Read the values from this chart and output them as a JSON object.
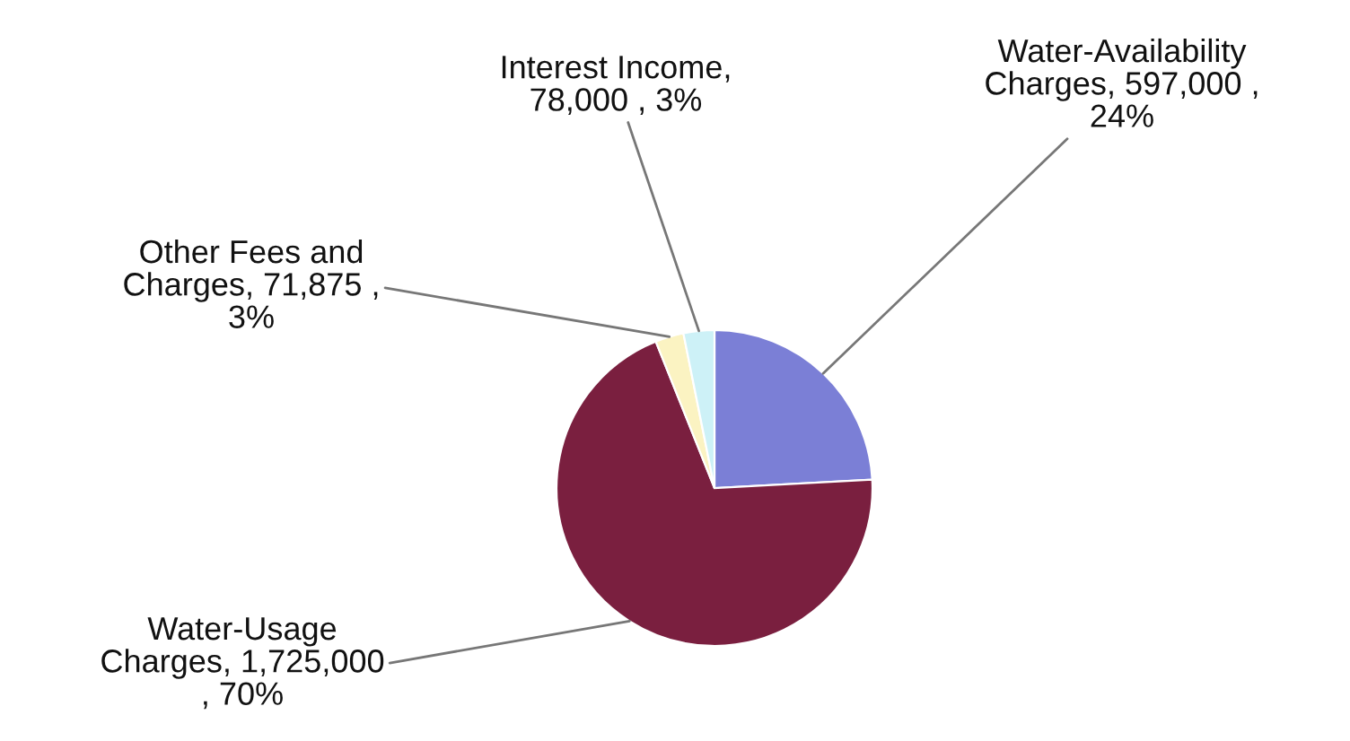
{
  "chart_data": {
    "type": "pie",
    "categories": [
      "Water-Availability\nCharges",
      "Water-Usage\nCharges",
      "Other Fees and\nCharges",
      "Interest Income"
    ],
    "values": [
      597000,
      1725000,
      71875,
      78000
    ],
    "value_labels": [
      ", 597,000 ,\n24%",
      ", 1,725,000\n, 70%",
      ", 71,875 ,\n3%",
      ",\n78,000 , 3%"
    ],
    "colors": [
      "#7b7fd6",
      "#7a1f3f",
      "#fbf3c2",
      "#cdf1f7"
    ]
  }
}
